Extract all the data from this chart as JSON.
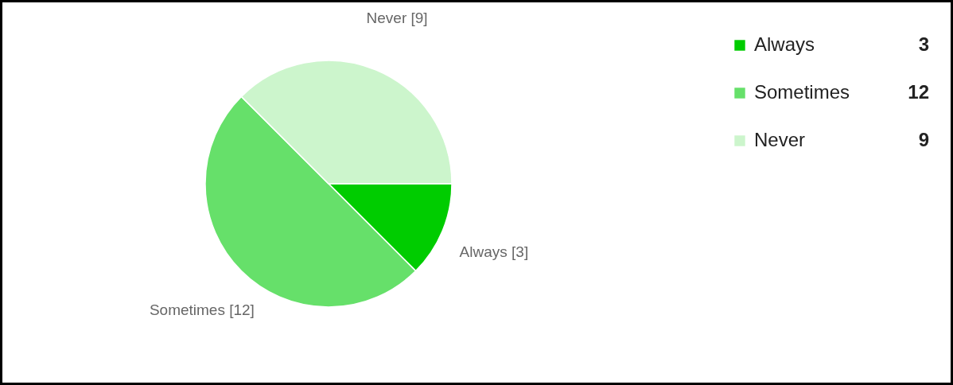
{
  "chart_data": {
    "type": "pie",
    "categories": [
      "Always",
      "Sometimes",
      "Never"
    ],
    "values": [
      3,
      12,
      9
    ],
    "colors": [
      "#00cc00",
      "#66e06a",
      "#ccf5cc"
    ],
    "value_labels": [
      "[3]",
      "[12]",
      "[9]"
    ],
    "annotations": [
      "3",
      "12",
      "9"
    ],
    "legend": "top right"
  }
}
